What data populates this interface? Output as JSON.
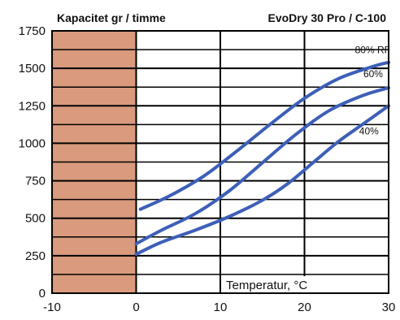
{
  "chart_data": {
    "type": "line",
    "title_left": "Kapacitet gr / timme",
    "title_right": "EvoDry 30 Pro / C-100",
    "xlabel": "Temperatur, °C",
    "ylabel": "",
    "xlim": [
      -10,
      30
    ],
    "ylim": [
      0,
      1750
    ],
    "x_ticks": [
      "-10",
      "0",
      "10",
      "20",
      "30"
    ],
    "y_ticks": [
      "0",
      "250",
      "500",
      "750",
      "1000",
      "1250",
      "1500",
      "1750"
    ],
    "shaded_region": {
      "x_from": -10,
      "x_to": 0,
      "color": "#d99a7d"
    },
    "line_color": "#3d5fb8",
    "series": [
      {
        "name": "80% RF",
        "x": [
          0.5,
          4,
          8,
          12,
          16,
          20,
          24,
          28,
          30
        ],
        "y": [
          560,
          650,
          780,
          950,
          1130,
          1300,
          1430,
          1510,
          1540
        ]
      },
      {
        "name": "60%",
        "x": [
          0,
          3,
          7,
          11,
          15,
          19,
          23,
          27,
          30
        ],
        "y": [
          330,
          420,
          530,
          680,
          870,
          1060,
          1220,
          1320,
          1370
        ]
      },
      {
        "name": "40%",
        "x": [
          0,
          3,
          7,
          11,
          15,
          18,
          21,
          24,
          27,
          30
        ],
        "y": [
          260,
          340,
          420,
          510,
          620,
          730,
          870,
          1010,
          1130,
          1250
        ]
      }
    ]
  }
}
